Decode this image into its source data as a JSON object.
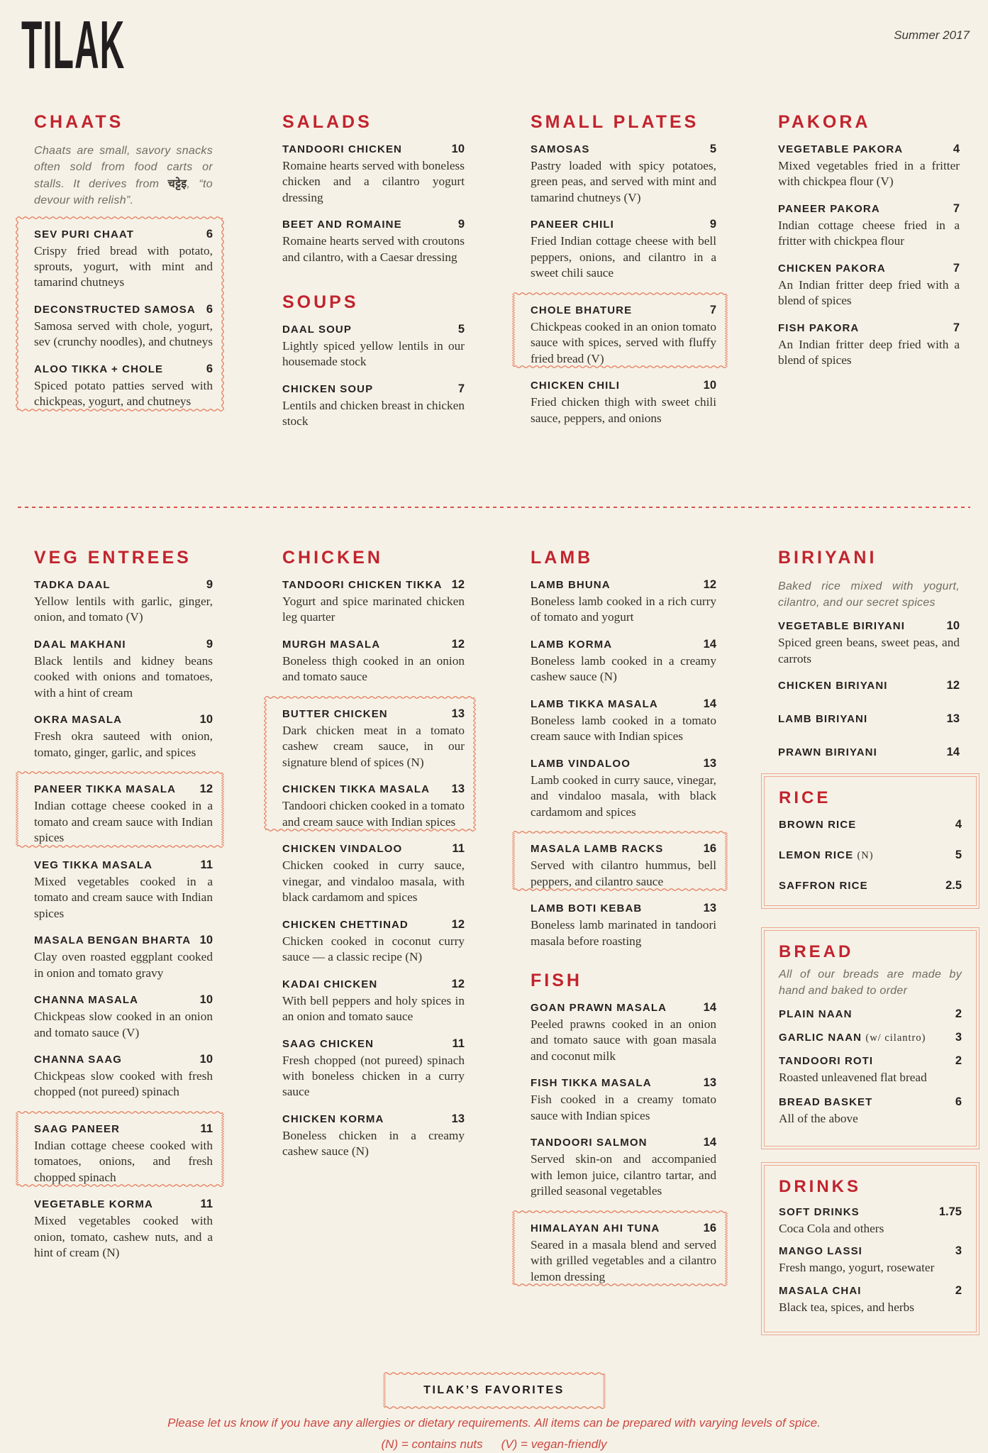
{
  "header": {
    "logo": "TILAK",
    "edition": "Summer 2017"
  },
  "colors": {
    "paper": "#F6F1E7",
    "accent": "#C1242E",
    "favorite_border": "#E58767",
    "body_text": "#363029"
  },
  "chaats": {
    "title": "CHAATS",
    "intro_pre": "Chaats are small, savory snacks often sold from food carts or stalls. It derives from ",
    "intro_term": "चट्टेइ",
    "intro_post": ", “to devour with relish”.",
    "items": [
      {
        "name": "SEV PURI CHAAT",
        "price": "6",
        "desc": "Crispy fried bread with potato, sprouts, yogurt, with mint and tamarind chutneys"
      },
      {
        "name": "DECONSTRUCTED SAMOSA",
        "price": "6",
        "desc": "Samosa served with chole, yogurt, sev (crunchy noodles), and chutneys"
      },
      {
        "name": "ALOO TIKKA + CHOLE",
        "price": "6",
        "desc": "Spiced potato patties served with chickpeas, yogurt, and chutneys"
      }
    ]
  },
  "salads": {
    "title": "SALADS",
    "items": [
      {
        "name": "TANDOORI CHICKEN",
        "price": "10",
        "desc": "Romaine hearts served with boneless chicken and a cilantro yogurt dressing"
      },
      {
        "name": "BEET AND ROMAINE",
        "price": "9",
        "desc": "Romaine hearts served with croutons and cilantro, with a Caesar dressing"
      }
    ]
  },
  "soups": {
    "title": "SOUPS",
    "items": [
      {
        "name": "DAAL SOUP",
        "price": "5",
        "desc": "Lightly spiced yellow lentils in our housemade stock"
      },
      {
        "name": "CHICKEN SOUP",
        "price": "7",
        "desc": "Lentils and chicken breast in chicken stock"
      }
    ]
  },
  "small_plates": {
    "title": "SMALL PLATES",
    "items": [
      {
        "name": "SAMOSAS",
        "price": "5",
        "desc": "Pastry loaded with spicy potatoes, green peas, and served with mint and tamarind chutneys (V)"
      },
      {
        "name": "PANEER CHILI",
        "price": "9",
        "desc": "Fried Indian cottage cheese with bell peppers, onions, and cilantro in a sweet chili sauce"
      },
      {
        "name": "CHOLE BHATURE",
        "price": "7",
        "desc": "Chickpeas cooked in an onion tomato sauce with spices, served with fluffy fried bread (V)"
      },
      {
        "name": "CHICKEN CHILI",
        "price": "10",
        "desc": "Fried chicken thigh with sweet chili sauce, peppers, and onions"
      }
    ]
  },
  "pakora": {
    "title": "PAKORA",
    "items": [
      {
        "name": "VEGETABLE PAKORA",
        "price": "4",
        "desc": "Mixed vegetables fried in a fritter with chickpea flour (V)"
      },
      {
        "name": "PANEER PAKORA",
        "price": "7",
        "desc": "Indian cottage cheese fried in a fritter with chickpea flour"
      },
      {
        "name": "CHICKEN PAKORA",
        "price": "7",
        "desc": "An Indian fritter deep fried with a blend of spices"
      },
      {
        "name": "FISH PAKORA",
        "price": "7",
        "desc": "An Indian fritter deep fried with a blend of spices"
      }
    ]
  },
  "veg_entrees": {
    "title": "VEG ENTREES",
    "items": [
      {
        "name": "TADKA DAAL",
        "price": "9",
        "desc": "Yellow lentils with garlic, ginger, onion, and tomato (V)"
      },
      {
        "name": "DAAL MAKHANI",
        "price": "9",
        "desc": "Black lentils and kidney beans cooked with onions and tomatoes, with a hint of cream"
      },
      {
        "name": "OKRA MASALA",
        "price": "10",
        "desc": "Fresh okra sauteed with onion, tomato, ginger, garlic, and spices"
      },
      {
        "name": "PANEER TIKKA MASALA",
        "price": "12",
        "desc": "Indian cottage cheese cooked in a tomato and cream sauce with Indian spices"
      },
      {
        "name": "VEG TIKKA MASALA",
        "price": "11",
        "desc": "Mixed vegetables cooked in a tomato and cream sauce with Indian spices"
      },
      {
        "name": "MASALA BENGAN BHARTA",
        "price": "10",
        "desc": "Clay oven roasted eggplant cooked in onion and tomato gravy"
      },
      {
        "name": "CHANNA MASALA",
        "price": "10",
        "desc": "Chickpeas slow cooked in an onion and tomato sauce (V)"
      },
      {
        "name": "CHANNA SAAG",
        "price": "10",
        "desc": "Chickpeas slow cooked with fresh chopped (not pureed) spinach"
      },
      {
        "name": "SAAG PANEER",
        "price": "11",
        "desc": "Indian cottage cheese cooked with tomatoes, onions, and fresh chopped spinach"
      },
      {
        "name": "VEGETABLE KORMA",
        "price": "11",
        "desc": "Mixed vegetables cooked with onion, tomato, cashew nuts, and a hint of cream (N)"
      }
    ]
  },
  "chicken": {
    "title": "CHICKEN",
    "items": [
      {
        "name": "TANDOORI CHICKEN TIKKA",
        "price": "12",
        "desc": "Yogurt and spice marinated chicken leg quarter"
      },
      {
        "name": "MURGH MASALA",
        "price": "12",
        "desc": "Boneless thigh cooked in an onion and tomato sauce"
      },
      {
        "name": "BUTTER CHICKEN",
        "price": "13",
        "desc": "Dark chicken meat in a tomato cashew cream sauce, in our signature blend of spices (N)"
      },
      {
        "name": "CHICKEN TIKKA MASALA",
        "price": "13",
        "desc": "Tandoori chicken cooked in a tomato and cream sauce with Indian spices"
      },
      {
        "name": "CHICKEN VINDALOO",
        "price": "11",
        "desc": "Chicken cooked in curry sauce, vinegar, and vindaloo masala, with black cardamom and spices"
      },
      {
        "name": "CHICKEN CHETTINAD",
        "price": "12",
        "desc": "Chicken cooked in coconut curry sauce — a classic recipe (N)"
      },
      {
        "name": "KADAI CHICKEN",
        "price": "12",
        "desc": "With bell peppers and holy spices in an onion and tomato sauce"
      },
      {
        "name": "SAAG CHICKEN",
        "price": "11",
        "desc": "Fresh chopped (not pureed) spinach with boneless chicken in a curry sauce"
      },
      {
        "name": "CHICKEN KORMA",
        "price": "13",
        "desc": "Boneless chicken in a creamy cashew sauce (N)"
      }
    ]
  },
  "lamb": {
    "title": "LAMB",
    "items": [
      {
        "name": "LAMB BHUNA",
        "price": "12",
        "desc": "Boneless lamb cooked in a rich curry of tomato and yogurt"
      },
      {
        "name": "LAMB KORMA",
        "price": "14",
        "desc": "Boneless lamb cooked in a creamy cashew sauce (N)"
      },
      {
        "name": "LAMB TIKKA MASALA",
        "price": "14",
        "desc": "Boneless lamb cooked in a tomato cream sauce with Indian spices"
      },
      {
        "name": "LAMB VINDALOO",
        "price": "13",
        "desc": "Lamb cooked in curry sauce, vinegar, and vindaloo masala, with black cardamom and spices"
      },
      {
        "name": "MASALA LAMB RACKS",
        "price": "16",
        "desc": "Served with cilantro hummus, bell peppers, and cilantro sauce"
      },
      {
        "name": "LAMB BOTI KEBAB",
        "price": "13",
        "desc": "Boneless lamb marinated in tandoori masala before roasting"
      }
    ]
  },
  "fish": {
    "title": "FISH",
    "items": [
      {
        "name": "GOAN PRAWN MASALA",
        "price": "14",
        "desc": "Peeled prawns cooked in an onion and tomato sauce with goan masala and coconut milk"
      },
      {
        "name": "FISH TIKKA MASALA",
        "price": "13",
        "desc": "Fish cooked in a creamy tomato sauce with Indian spices"
      },
      {
        "name": "TANDOORI SALMON",
        "price": "14",
        "desc": "Served skin-on and accompanied with lemon juice, cilantro tartar, and grilled seasonal vegetables"
      },
      {
        "name": "HIMALAYAN AHI TUNA",
        "price": "16",
        "desc": "Seared in a masala blend and served with grilled vegetables and a cilantro lemon dressing"
      }
    ]
  },
  "biriyani": {
    "title": "BIRIYANI",
    "intro": "Baked rice mixed with yogurt, cilantro, and our secret spices",
    "items": [
      {
        "name": "VEGETABLE BIRIYANI",
        "price": "10",
        "desc": "Spiced green beans, sweet peas, and carrots"
      },
      {
        "name": "CHICKEN BIRIYANI",
        "price": "12"
      },
      {
        "name": "LAMB BIRIYANI",
        "price": "13"
      },
      {
        "name": "PRAWN BIRIYANI",
        "price": "14"
      }
    ]
  },
  "rice": {
    "title": "RICE",
    "items": [
      {
        "name": "BROWN RICE",
        "price": "4"
      },
      {
        "name": "LEMON RICE",
        "note": "(N)",
        "price": "5"
      },
      {
        "name": "SAFFRON RICE",
        "price": "2.5"
      }
    ]
  },
  "bread": {
    "title": "BREAD",
    "intro": "All of our breads are made by hand and baked to order",
    "items": [
      {
        "name": "PLAIN NAAN",
        "price": "2"
      },
      {
        "name": "GARLIC NAAN",
        "note": "(w/ cilantro)",
        "price": "3"
      },
      {
        "name": "TANDOORI ROTI",
        "price": "2",
        "desc": "Roasted unleavened flat bread"
      },
      {
        "name": "BREAD BASKET",
        "price": "6",
        "desc": "All of the above"
      }
    ]
  },
  "drinks": {
    "title": "DRINKS",
    "items": [
      {
        "name": "SOFT DRINKS",
        "price": "1.75",
        "desc": "Coca Cola and others"
      },
      {
        "name": "MANGO LASSI",
        "price": "3",
        "desc": "Fresh mango, yogurt, rosewater"
      },
      {
        "name": "MASALA CHAI",
        "price": "2",
        "desc": "Black tea, spices, and herbs"
      }
    ]
  },
  "footer": {
    "badge": "TILAK’S FAVORITES",
    "note": "Please let us know if you have any allergies or dietary requirements. All items can be prepared with varying levels of spice.",
    "legend_nuts": "(N) = contains nuts",
    "legend_vegan": "(V) = vegan-friendly"
  }
}
